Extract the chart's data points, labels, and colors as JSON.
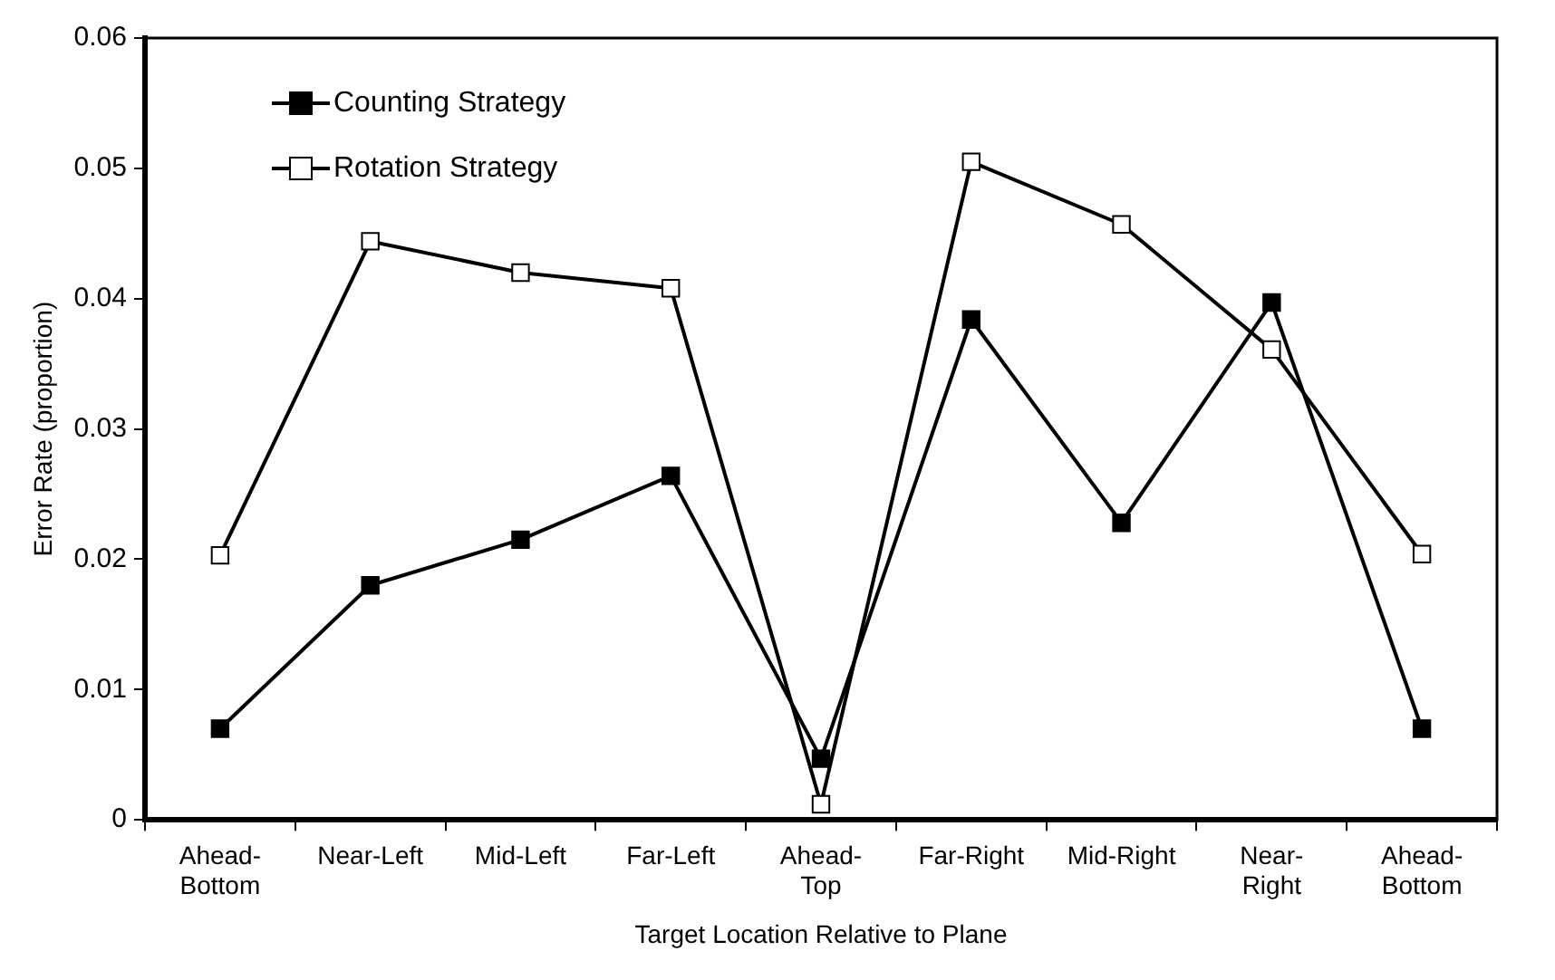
{
  "chart_data": {
    "type": "line",
    "xlabel": "Target Location Relative to Plane",
    "ylabel": "Error Rate (proportion)",
    "categories": [
      "Ahead-\nBottom",
      "Near-Left",
      "Mid-Left",
      "Far-Left",
      "Ahead-\nTop",
      "Far-Right",
      "Mid-Right",
      "Near-\nRight",
      "Ahead-\nBottom"
    ],
    "series": [
      {
        "name": "Counting Strategy",
        "color": "#000000",
        "values": [
          0.007,
          0.018,
          0.0215,
          0.0264,
          0.0047,
          0.0384,
          0.0228,
          0.0397,
          0.007
        ]
      },
      {
        "name": "Rotation Strategy",
        "color": "#000000",
        "values": [
          0.0203,
          0.0444,
          0.042,
          0.0408,
          0.0012,
          0.0505,
          0.0457,
          0.0361,
          0.0204
        ]
      }
    ],
    "ylim": [
      0,
      0.06
    ],
    "yticks": [
      0,
      0.01,
      0.02,
      0.03,
      0.04,
      0.05,
      0.06
    ],
    "grid": false,
    "legend": "top left",
    "marker": "square",
    "line_style": "solid"
  }
}
